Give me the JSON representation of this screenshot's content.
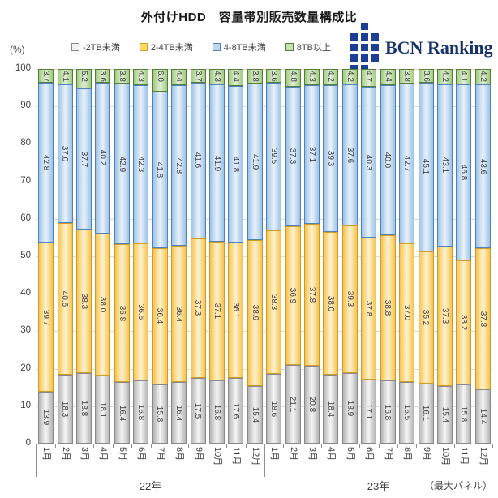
{
  "logo": {
    "text": "BCN Ranking",
    "text_color": "#17356B",
    "square_color": "#1C3E94"
  },
  "chart_data": {
    "type": "bar",
    "stacked": true,
    "title": "外付けHDD　容量帯別販売数量構成比",
    "unit_label": "(%)",
    "ylim": [
      0,
      100
    ],
    "yticks": [
      100,
      90,
      80,
      70,
      60,
      50,
      40,
      30,
      20,
      10,
      0
    ],
    "grid": true,
    "legend_position": "top",
    "categories": [
      "1月",
      "2月",
      "3月",
      "4月",
      "5月",
      "6月",
      "7月",
      "8月",
      "9月",
      "10月",
      "11月",
      "12月",
      "1月",
      "2月",
      "3月",
      "4月",
      "5月",
      "6月",
      "7月",
      "8月",
      "9月",
      "10月",
      "11月",
      "12月"
    ],
    "groups": [
      {
        "label": "22年",
        "span": 12
      },
      {
        "label": "23年",
        "span": 12
      }
    ],
    "footnote": "（最大パネル）",
    "style": {
      "grid_color": "#D9D9D9",
      "axis_color": "#909090",
      "text_color": "#404040"
    },
    "series": [
      {
        "key": "gray",
        "name": "-2TB未満",
        "colors": {
          "edge": "#B4B4B4",
          "center": "#F6F6F6",
          "border": "#898989",
          "swatch": "#F2F2F2"
        },
        "values": [
          13.9,
          18.3,
          18.8,
          18.1,
          16.4,
          16.8,
          15.8,
          16.4,
          17.5,
          16.8,
          17.6,
          15.4,
          18.6,
          21.1,
          20.8,
          18.4,
          18.9,
          17.1,
          16.8,
          16.5,
          16.1,
          15.4,
          15.8,
          14.4
        ]
      },
      {
        "key": "yellow",
        "name": "2-4TB未満",
        "colors": {
          "edge": "#F6C44D",
          "center": "#FDF2D0",
          "border": "#D39A27",
          "swatch": "#FFD966"
        },
        "values": [
          39.7,
          40.6,
          38.3,
          38.0,
          36.8,
          36.6,
          36.4,
          36.4,
          37.3,
          37.1,
          36.1,
          38.9,
          38.3,
          36.9,
          37.8,
          38.0,
          39.3,
          37.8,
          38.8,
          37.0,
          35.2,
          37.3,
          33.2,
          37.8
        ]
      },
      {
        "key": "blue",
        "name": "4-8TB未満",
        "colors": {
          "edge": "#9DC3E6",
          "center": "#EAF2FB",
          "border": "#4E81BD",
          "swatch": "#BDD7EE"
        },
        "values": [
          42.8,
          37.0,
          37.7,
          40.2,
          42.9,
          42.3,
          41.8,
          42.8,
          41.6,
          41.9,
          41.8,
          41.9,
          39.5,
          37.3,
          37.1,
          39.3,
          37.6,
          40.3,
          40.0,
          42.7,
          45.1,
          43.1,
          46.8,
          43.6
        ]
      },
      {
        "key": "green",
        "name": "8TB以上",
        "colors": {
          "edge": "#A2CB81",
          "center": "#E0EED6",
          "border": "#527F33",
          "swatch": "#C5E0B4"
        },
        "values": [
          3.7,
          4.1,
          5.2,
          3.6,
          3.8,
          4.3,
          6.0,
          4.4,
          3.7,
          4.3,
          4.4,
          3.8,
          3.6,
          4.8,
          4.3,
          4.2,
          4.2,
          4.7,
          4.4,
          3.8,
          3.6,
          4.2,
          4.1,
          4.2
        ]
      }
    ]
  }
}
